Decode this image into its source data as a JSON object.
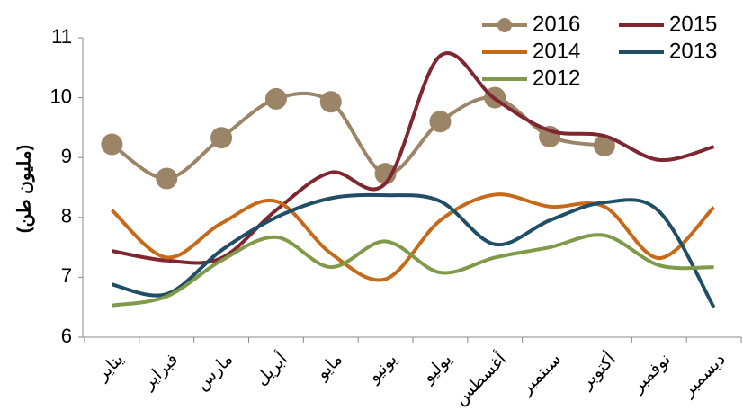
{
  "chart_data": {
    "type": "line",
    "smooth": true,
    "y_label": "(مليون طن)",
    "categories": [
      "يناير",
      "فبراير",
      "مارس",
      "أبريل",
      "مايو",
      "يونيو",
      "يوليو",
      "أغسطس",
      "سبتمبر",
      "أكتوبر",
      "نوفمبر",
      "ديسمبر"
    ],
    "series": [
      {
        "name": "2016",
        "color": "#9c8466",
        "marker": "circle",
        "values": [
          9.22,
          8.65,
          9.33,
          9.98,
          9.93,
          8.73,
          9.6,
          10.0,
          9.35,
          9.2,
          null,
          null
        ]
      },
      {
        "name": "2015",
        "color": "#7f2630",
        "values": [
          7.44,
          7.28,
          7.32,
          8.12,
          8.75,
          8.57,
          10.7,
          9.98,
          9.45,
          9.36,
          8.96,
          9.18
        ]
      },
      {
        "name": "2014",
        "color": "#c66a1a",
        "values": [
          8.12,
          7.33,
          7.9,
          8.27,
          7.4,
          6.97,
          7.95,
          8.38,
          8.18,
          8.18,
          7.32,
          8.17
        ]
      },
      {
        "name": "2013",
        "color": "#1f4e66",
        "values": [
          6.88,
          6.72,
          7.45,
          8.0,
          8.32,
          8.37,
          8.27,
          7.55,
          7.95,
          8.25,
          8.1,
          6.5
        ]
      },
      {
        "name": "2012",
        "color": "#7f9a48",
        "values": [
          6.53,
          6.68,
          7.28,
          7.67,
          7.17,
          7.6,
          7.08,
          7.33,
          7.5,
          7.7,
          7.2,
          7.17
        ]
      }
    ],
    "ylim": [
      6,
      11
    ],
    "yticks": [
      6,
      7,
      8,
      9,
      10,
      11
    ],
    "legend": "top-right"
  }
}
